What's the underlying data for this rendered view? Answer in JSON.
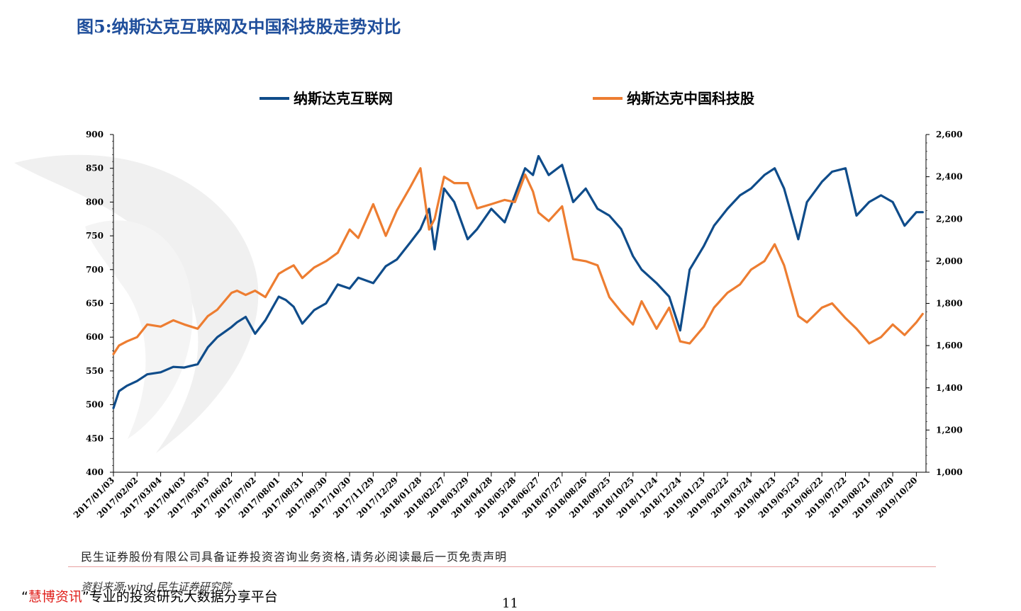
{
  "page": {
    "title": "图5:纳斯达克互联网及中国科技股走势对比",
    "disclaimer": "民生证券股份有限公司具备证券投资咨询业务资格,请务必阅读最后一页免责声明",
    "source": "资料来源:wind,民生证券研究院",
    "slogan_open_quote": "“",
    "slogan_brand": "慧博资讯",
    "slogan_close_quote": "”",
    "slogan_rest": "专业的投资研究大数据分享平台",
    "page_number": "11"
  },
  "chart_data": {
    "type": "line",
    "title": "",
    "xlabel": "",
    "ylabel": "",
    "legend_position": "top-center",
    "grid": false,
    "x_ticks": [
      "2017/01/03",
      "2017/02/02",
      "2017/03/04",
      "2017/04/03",
      "2017/05/03",
      "2017/06/02",
      "2017/07/02",
      "2017/08/01",
      "2017/08/31",
      "2017/09/30",
      "2017/10/30",
      "2017/11/29",
      "2017/12/29",
      "2018/01/28",
      "2018/02/27",
      "2018/03/29",
      "2018/04/28",
      "2018/05/28",
      "2018/06/27",
      "2018/07/27",
      "2018/08/26",
      "2018/09/25",
      "2018/10/25",
      "2018/11/24",
      "2018/12/24",
      "2019/01/23",
      "2019/02/22",
      "2019/03/24",
      "2019/04/23",
      "2019/05/23",
      "2019/06/22",
      "2019/07/22",
      "2019/08/21",
      "2019/09/20",
      "2019/10/20"
    ],
    "y_left": {
      "min": 400,
      "max": 900,
      "ticks": [
        "400",
        "450",
        "500",
        "550",
        "600",
        "650",
        "700",
        "750",
        "800",
        "850",
        "900"
      ]
    },
    "y_right": {
      "min": 1000,
      "max": 2600,
      "ticks": [
        "1,000",
        "1,200",
        "1,400",
        "1,600",
        "1,800",
        "2,000",
        "2,200",
        "2,400",
        "2,600"
      ]
    },
    "series": [
      {
        "name": "纳斯达克互联网",
        "color": "#0f4c8a",
        "axis": "left",
        "x": [
          "2017/01/03",
          "2017/01/10",
          "2017/01/20",
          "2017/02/02",
          "2017/02/15",
          "2017/03/04",
          "2017/03/20",
          "2017/04/03",
          "2017/04/20",
          "2017/05/03",
          "2017/05/15",
          "2017/06/02",
          "2017/06/09",
          "2017/06/20",
          "2017/07/02",
          "2017/07/15",
          "2017/08/01",
          "2017/08/10",
          "2017/08/20",
          "2017/08/31",
          "2017/09/15",
          "2017/09/30",
          "2017/10/15",
          "2017/10/30",
          "2017/11/10",
          "2017/11/29",
          "2017/12/15",
          "2017/12/29",
          "2018/01/15",
          "2018/01/28",
          "2018/02/08",
          "2018/02/15",
          "2018/02/27",
          "2018/03/12",
          "2018/03/29",
          "2018/04/10",
          "2018/04/28",
          "2018/05/15",
          "2018/05/28",
          "2018/06/10",
          "2018/06/20",
          "2018/06/27",
          "2018/07/10",
          "2018/07/27",
          "2018/08/10",
          "2018/08/26",
          "2018/09/10",
          "2018/09/25",
          "2018/10/10",
          "2018/10/25",
          "2018/11/05",
          "2018/11/24",
          "2018/12/10",
          "2018/12/24",
          "2019/01/05",
          "2019/01/23",
          "2019/02/05",
          "2019/02/22",
          "2019/03/10",
          "2019/03/24",
          "2019/04/10",
          "2019/04/23",
          "2019/05/05",
          "2019/05/23",
          "2019/06/03",
          "2019/06/22",
          "2019/07/05",
          "2019/07/22",
          "2019/08/05",
          "2019/08/21",
          "2019/09/05",
          "2019/09/20",
          "2019/10/05",
          "2019/10/20",
          "2019/10/28"
        ],
        "y": [
          495,
          520,
          528,
          535,
          545,
          548,
          556,
          555,
          560,
          585,
          600,
          615,
          622,
          630,
          605,
          625,
          660,
          655,
          645,
          620,
          640,
          650,
          678,
          672,
          688,
          680,
          705,
          715,
          740,
          760,
          790,
          730,
          820,
          800,
          745,
          760,
          790,
          770,
          810,
          850,
          840,
          868,
          840,
          855,
          800,
          820,
          790,
          780,
          760,
          720,
          700,
          680,
          660,
          610,
          700,
          735,
          765,
          790,
          810,
          820,
          840,
          850,
          820,
          745,
          800,
          830,
          845,
          850,
          780,
          800,
          810,
          800,
          765,
          785,
          785
        ]
      },
      {
        "name": "纳斯达克中国科技股",
        "color": "#ed7d31",
        "axis": "right",
        "x": [
          "2017/01/03",
          "2017/01/10",
          "2017/01/20",
          "2017/02/02",
          "2017/02/15",
          "2017/03/04",
          "2017/03/20",
          "2017/04/03",
          "2017/04/20",
          "2017/05/03",
          "2017/05/15",
          "2017/06/02",
          "2017/06/09",
          "2017/06/20",
          "2017/07/02",
          "2017/07/15",
          "2017/08/01",
          "2017/08/10",
          "2017/08/20",
          "2017/08/31",
          "2017/09/15",
          "2017/09/30",
          "2017/10/15",
          "2017/10/30",
          "2017/11/10",
          "2017/11/29",
          "2017/12/15",
          "2017/12/29",
          "2018/01/15",
          "2018/01/28",
          "2018/02/08",
          "2018/02/15",
          "2018/02/27",
          "2018/03/12",
          "2018/03/29",
          "2018/04/10",
          "2018/04/28",
          "2018/05/15",
          "2018/05/28",
          "2018/06/10",
          "2018/06/20",
          "2018/06/27",
          "2018/07/10",
          "2018/07/27",
          "2018/08/10",
          "2018/08/26",
          "2018/09/10",
          "2018/09/25",
          "2018/10/10",
          "2018/10/25",
          "2018/11/05",
          "2018/11/24",
          "2018/12/10",
          "2018/12/24",
          "2019/01/05",
          "2019/01/23",
          "2019/02/05",
          "2019/02/22",
          "2019/03/10",
          "2019/03/24",
          "2019/04/10",
          "2019/04/23",
          "2019/05/05",
          "2019/05/23",
          "2019/06/03",
          "2019/06/22",
          "2019/07/05",
          "2019/07/22",
          "2019/08/05",
          "2019/08/21",
          "2019/09/05",
          "2019/09/20",
          "2019/10/05",
          "2019/10/20",
          "2019/10/28"
        ],
        "y": [
          1560,
          1600,
          1620,
          1640,
          1700,
          1690,
          1720,
          1700,
          1680,
          1740,
          1770,
          1850,
          1860,
          1840,
          1860,
          1830,
          1940,
          1960,
          1980,
          1920,
          1970,
          2000,
          2040,
          2150,
          2110,
          2270,
          2120,
          2240,
          2350,
          2440,
          2150,
          2200,
          2400,
          2370,
          2370,
          2250,
          2270,
          2290,
          2280,
          2410,
          2330,
          2230,
          2190,
          2260,
          2010,
          2000,
          1980,
          1830,
          1760,
          1700,
          1810,
          1680,
          1780,
          1620,
          1610,
          1690,
          1780,
          1850,
          1890,
          1960,
          2000,
          2080,
          1980,
          1740,
          1710,
          1780,
          1800,
          1730,
          1680,
          1610,
          1640,
          1700,
          1650,
          1710,
          1750
        ]
      }
    ]
  }
}
